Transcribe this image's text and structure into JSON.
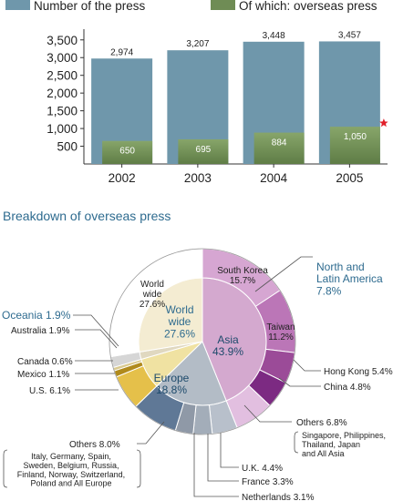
{
  "chart_data": [
    {
      "type": "bar",
      "legend_placement": "top",
      "legend": [
        {
          "label": "Number of the press",
          "color": "#6f97ab"
        },
        {
          "label": "Of which: overseas press",
          "color": "#6f8c55"
        }
      ],
      "categories": [
        "2002",
        "2003",
        "2004",
        "2005"
      ],
      "series": [
        {
          "name": "Number of the press",
          "values": [
            2974,
            3207,
            3448,
            3457
          ],
          "labels": [
            "2,974",
            "3,207",
            "3,448",
            "3,457"
          ]
        },
        {
          "name": "Of which: overseas press",
          "values": [
            650,
            695,
            884,
            1050
          ],
          "labels": [
            "650",
            "695",
            "884",
            "1,050"
          ]
        }
      ],
      "yticks": [
        "3,500",
        "3,000",
        "2,500",
        "2,000",
        "1,500",
        "1,000",
        "500"
      ],
      "ylim": [
        0,
        3700
      ],
      "grid": false
    },
    {
      "type": "pie",
      "title": "Breakdown of overseas press",
      "inner_ring": [
        {
          "label": "World wide",
          "value": "27.6%",
          "color": "#f4ecd2",
          "percent": 27.6
        },
        {
          "label": "Asia",
          "value": "43.9%",
          "color": "#d4a9cf",
          "percent": 43.9
        },
        {
          "label": "Europe",
          "value": "18.8%",
          "color": "#b3bcc6",
          "percent": 18.8
        },
        {
          "label": "Oceania",
          "value": "1.9%",
          "color": "#e0d8c0",
          "percent": 1.9
        },
        {
          "label": "North and Latin America",
          "value": "7.8%",
          "color": "#f0e2a2",
          "percent": 7.8
        }
      ],
      "outer_ring": [
        {
          "label": "South Korea",
          "value": "15.7%",
          "percent": 15.7,
          "color": "#d6a6d2"
        },
        {
          "label": "Taiwan",
          "value": "11.2%",
          "percent": 11.2,
          "color": "#bb76b7"
        },
        {
          "label": "Hong Kong",
          "value": "5.4%",
          "percent": 5.4,
          "color": "#9b4b98"
        },
        {
          "label": "China",
          "value": "4.8%",
          "percent": 4.8,
          "color": "#7c2a82"
        },
        {
          "label": "Others",
          "value": "6.8%",
          "percent": 6.8,
          "color": "#e2bfe0",
          "detail": "Singapore, Philippines, Thailand, Japan and All Asia"
        },
        {
          "label": "U.K.",
          "value": "4.4%",
          "percent": 4.4,
          "color": "#b8c0cb"
        },
        {
          "label": "France",
          "value": "3.3%",
          "percent": 3.3,
          "color": "#a3adb9"
        },
        {
          "label": "Netherlands",
          "value": "3.1%",
          "percent": 3.1,
          "color": "#8f99a7"
        },
        {
          "label": "Others",
          "value": "8.0%",
          "percent": 8.0,
          "color": "#5f7896",
          "detail": "Italy, Germany, Spain, Sweden, Belgium, Russia, Finland, Norway, Switzerland, Poland and All Europe"
        },
        {
          "label": "U.S.",
          "value": "6.1%",
          "percent": 6.1,
          "color": "#e5c04a"
        },
        {
          "label": "Mexico",
          "value": "1.1%",
          "percent": 1.1,
          "color": "#b08a1c"
        },
        {
          "label": "Canada",
          "value": "0.6%",
          "percent": 0.6,
          "color": "#d9c98f"
        },
        {
          "label": "Australia",
          "value": "1.9%",
          "percent": 1.9,
          "color": "#d6d6d6"
        },
        {
          "label": "World wide",
          "value": "27.6%",
          "percent": 27.6,
          "color": "#ffffff"
        }
      ],
      "callouts": {
        "north_latin_america": "North and\nLatin America\n7.8%",
        "oceania": "Oceania 1.9%",
        "world_wide_inner": "World\nwide\n27.6%",
        "asia_inner": "Asia\n43.9%",
        "europe_inner": "Europe\n18.8%",
        "world_wide_outer": "World\nwide\n27.6%",
        "south_korea": "South Korea\n15.7%",
        "taiwan": "Taiwan\n11.2%",
        "hong_kong": "Hong Kong 5.4%",
        "china": "China 4.8%",
        "asia_others": "Others 6.8%",
        "asia_others_detail": "Singapore, Philippines,\nThailand, Japan\nand All Asia",
        "uk": "U.K. 4.4%",
        "france": "France 3.3%",
        "netherlands": "Netherlands 3.1%",
        "europe_others": "Others 8.0%",
        "europe_others_detail": "Italy, Germany, Spain,\nSweden, Belgium, Russia,\nFinland, Norway, Switzerland,\nPoland and All Europe",
        "us": "U.S. 6.1%",
        "mexico": "Mexico 1.1%",
        "canada": "Canada 0.6%",
        "australia": "Australia 1.9%"
      }
    }
  ]
}
